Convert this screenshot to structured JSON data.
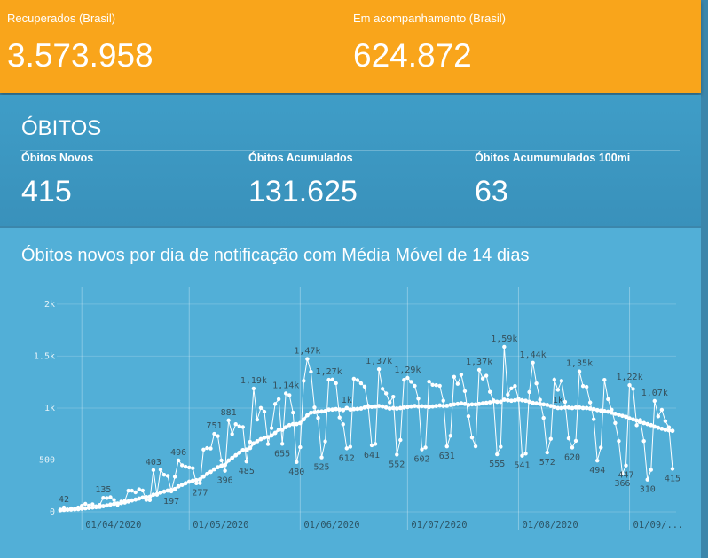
{
  "cards": [
    {
      "label": "Recuperados (Brasil)",
      "value": "3.573.958"
    },
    {
      "label": "Em acompanhamento (Brasil)",
      "value": "624.872"
    }
  ],
  "obitos": {
    "title": "ÓBITOS",
    "cards": [
      {
        "label": "Óbitos Novos",
        "value": "415"
      },
      {
        "label": "Óbitos Acumulados",
        "value": "131.625"
      },
      {
        "label": "Óbitos Acumumulados 100mi",
        "value": "63"
      }
    ]
  },
  "chart_data": {
    "type": "line",
    "title": "Óbitos novos por dia de notificação com Média Móvel de 14 dias",
    "x": [
      "2020-03-26",
      "2020-03-27",
      "2020-03-28",
      "2020-03-29",
      "2020-03-30",
      "2020-03-31",
      "2020-04-01",
      "2020-04-02",
      "2020-04-03",
      "2020-04-04",
      "2020-04-05",
      "2020-04-06",
      "2020-04-07",
      "2020-04-08",
      "2020-04-09",
      "2020-04-10",
      "2020-04-11",
      "2020-04-12",
      "2020-04-13",
      "2020-04-14",
      "2020-04-15",
      "2020-04-16",
      "2020-04-17",
      "2020-04-18",
      "2020-04-19",
      "2020-04-20",
      "2020-04-21",
      "2020-04-22",
      "2020-04-23",
      "2020-04-24",
      "2020-04-25",
      "2020-04-26",
      "2020-04-27",
      "2020-04-28",
      "2020-04-29",
      "2020-04-30",
      "2020-05-01",
      "2020-05-02",
      "2020-05-03",
      "2020-05-04",
      "2020-05-05",
      "2020-05-06",
      "2020-05-07",
      "2020-05-08",
      "2020-05-09",
      "2020-05-10",
      "2020-05-11",
      "2020-05-12",
      "2020-05-13",
      "2020-05-14",
      "2020-05-15",
      "2020-05-16",
      "2020-05-17",
      "2020-05-18",
      "2020-05-19",
      "2020-05-20",
      "2020-05-21",
      "2020-05-22",
      "2020-05-23",
      "2020-05-24",
      "2020-05-25",
      "2020-05-26",
      "2020-05-27",
      "2020-05-28",
      "2020-05-29",
      "2020-05-30",
      "2020-05-31",
      "2020-06-01",
      "2020-06-02",
      "2020-06-03",
      "2020-06-04",
      "2020-06-05",
      "2020-06-06",
      "2020-06-07",
      "2020-06-08",
      "2020-06-09",
      "2020-06-10",
      "2020-06-11",
      "2020-06-12",
      "2020-06-13",
      "2020-06-14",
      "2020-06-15",
      "2020-06-16",
      "2020-06-17",
      "2020-06-18",
      "2020-06-19",
      "2020-06-20",
      "2020-06-21",
      "2020-06-22",
      "2020-06-23",
      "2020-06-24",
      "2020-06-25",
      "2020-06-26",
      "2020-06-27",
      "2020-06-28",
      "2020-06-29",
      "2020-06-30",
      "2020-07-01",
      "2020-07-02",
      "2020-07-03",
      "2020-07-04",
      "2020-07-05",
      "2020-07-06",
      "2020-07-07",
      "2020-07-08",
      "2020-07-09",
      "2020-07-10",
      "2020-07-11",
      "2020-07-12",
      "2020-07-13",
      "2020-07-14",
      "2020-07-15",
      "2020-07-16",
      "2020-07-17",
      "2020-07-18",
      "2020-07-19",
      "2020-07-20",
      "2020-07-21",
      "2020-07-22",
      "2020-07-23",
      "2020-07-24",
      "2020-07-25",
      "2020-07-26",
      "2020-07-27",
      "2020-07-28",
      "2020-07-29",
      "2020-07-30",
      "2020-07-31",
      "2020-08-01",
      "2020-08-02",
      "2020-08-03",
      "2020-08-04",
      "2020-08-05",
      "2020-08-06",
      "2020-08-07",
      "2020-08-08",
      "2020-08-09",
      "2020-08-10",
      "2020-08-11",
      "2020-08-12",
      "2020-08-13",
      "2020-08-14",
      "2020-08-15",
      "2020-08-16",
      "2020-08-17",
      "2020-08-18",
      "2020-08-19",
      "2020-08-20",
      "2020-08-21",
      "2020-08-22",
      "2020-08-23",
      "2020-08-24",
      "2020-08-25",
      "2020-08-26",
      "2020-08-27",
      "2020-08-28",
      "2020-08-29",
      "2020-08-30",
      "2020-08-31",
      "2020-09-01",
      "2020-09-02",
      "2020-09-03",
      "2020-09-04",
      "2020-09-05",
      "2020-09-06",
      "2020-09-07",
      "2020-09-08",
      "2020-09-09",
      "2020-09-10",
      "2020-09-11",
      "2020-09-12",
      "2020-09-13"
    ],
    "series": [
      {
        "color": "#ffffff",
        "values": [
          22,
          42,
          23,
          33,
          31,
          42,
          58,
          77,
          60,
          73,
          54,
          67,
          135,
          133,
          141,
          115,
          68,
          99,
          105,
          204,
          204,
          188,
          217,
          206,
          115,
          113,
          403,
          165,
          407,
          357,
          346,
          197,
          338,
          496,
          449,
          435,
          428,
          421,
          275,
          277,
          600,
          615,
          610,
          751,
          730,
          496,
          396,
          881,
          749,
          844,
          824,
          816,
          485,
          674,
          1188,
          888,
          1001,
          965,
          653,
          807,
          1039,
          1086,
          655,
          1141,
          1124,
          956,
          480,
          623,
          1262,
          1473,
          1349,
          1005,
          904,
          525,
          679,
          1272,
          1274,
          1239,
          909,
          843,
          612,
          627,
          1282,
          1269,
          1238,
          1206,
          1022,
          641,
          654,
          1374,
          1185,
          1141,
          1055,
          1109,
          552,
          692,
          1271,
          1290,
          1252,
          1214,
          1091,
          602,
          620,
          1254,
          1223,
          1220,
          1214,
          1071,
          631,
          733,
          1300,
          1233,
          1322,
          1163,
          921,
          716,
          632,
          1367,
          1284,
          1311,
          1156,
          1074,
          555,
          627,
          1590,
          1129,
          1189,
          1212,
          1088,
          541,
          561,
          1154,
          1437,
          1237,
          1079,
          905,
          572,
          703,
          1274,
          1175,
          1262,
          1060,
          709,
          620,
          684,
          1352,
          1212,
          1204,
          1054,
          892,
          494,
          620,
          1271,
          1085,
          984,
          855,
          682,
          366,
          447,
          1220,
          1184,
          834,
          885,
          682,
          310,
          405,
          1068,
          920,
          983,
          874,
          814,
          415
        ],
        "value_labels": [
          null,
          "42",
          null,
          null,
          null,
          null,
          null,
          null,
          null,
          null,
          null,
          null,
          "135",
          null,
          null,
          null,
          null,
          null,
          null,
          null,
          null,
          null,
          null,
          null,
          null,
          null,
          "403",
          null,
          null,
          null,
          null,
          "197",
          null,
          "496",
          null,
          null,
          null,
          null,
          null,
          "277",
          null,
          null,
          null,
          "751",
          null,
          null,
          "396",
          "881",
          null,
          null,
          null,
          null,
          "485",
          null,
          "1,19k",
          null,
          null,
          null,
          null,
          null,
          null,
          null,
          "655",
          "1,14k",
          null,
          null,
          "480",
          null,
          null,
          "1,47k",
          null,
          null,
          null,
          "525",
          null,
          "1,27k",
          null,
          null,
          null,
          null,
          "612",
          null,
          null,
          null,
          null,
          null,
          null,
          "641",
          null,
          "1,37k",
          null,
          null,
          null,
          null,
          "552",
          null,
          null,
          "1,29k",
          null,
          null,
          null,
          "602",
          null,
          null,
          null,
          null,
          null,
          null,
          "631",
          null,
          null,
          null,
          null,
          null,
          null,
          null,
          null,
          "1,37k",
          null,
          null,
          null,
          null,
          "555",
          null,
          "1,59k",
          null,
          null,
          null,
          null,
          "541",
          null,
          null,
          "1,44k",
          null,
          null,
          null,
          "572",
          null,
          null,
          null,
          null,
          null,
          null,
          "620",
          null,
          "1,35k",
          null,
          null,
          null,
          null,
          "494",
          null,
          null,
          null,
          null,
          null,
          null,
          "366",
          "447",
          "1,22k",
          null,
          null,
          null,
          null,
          "310",
          null,
          "1,07k",
          null,
          null,
          null,
          null,
          "415"
        ]
      },
      {
        "color": "#ffffff",
        "values": [
          15,
          18,
          20,
          22,
          24,
          26,
          30,
          34,
          38,
          42,
          45,
          48,
          55,
          62,
          70,
          76,
          80,
          85,
          90,
          100,
          110,
          118,
          128,
          138,
          142,
          145,
          165,
          170,
          185,
          195,
          205,
          210,
          220,
          245,
          260,
          275,
          290,
          300,
          305,
          312,
          340,
          365,
          385,
          410,
          430,
          445,
          452,
          495,
          520,
          545,
          570,
          595,
          600,
          615,
          660,
          680,
          700,
          715,
          720,
          735,
          760,
          790,
          790,
          815,
          835,
          845,
          845,
          855,
          890,
          930,
          955,
          960,
          965,
          967,
          970,
          985,
          985,
          990,
          985,
          980,
          1000,
          985,
          990,
          992,
          995,
          1005,
          1010,
          1012,
          1015,
          1020,
          1015,
          1005,
          995,
          1000,
          995,
          1000,
          1005,
          1010,
          1015,
          1020,
          1015,
          1018,
          1015,
          1010,
          1015,
          1020,
          1025,
          1020,
          1022,
          1030,
          1035,
          1040,
          1045,
          1040,
          1030,
          1035,
          1035,
          1040,
          1045,
          1050,
          1055,
          1065,
          1060,
          1060,
          1080,
          1075,
          1070,
          1075,
          1080,
          1075,
          1070,
          1060,
          1050,
          1045,
          1040,
          1035,
          1030,
          1020,
          1010,
          1000,
          1000,
          1005,
          1005,
          1000,
          1005,
          1005,
          1000,
          1000,
          995,
          990,
          980,
          975,
          970,
          965,
          955,
          945,
          935,
          925,
          915,
          900,
          890,
          880,
          865,
          855,
          845,
          835,
          820,
          810,
          800,
          790,
          785,
          780
        ],
        "value_labels": [
          null,
          null,
          null,
          null,
          null,
          null,
          null,
          null,
          null,
          null,
          null,
          null,
          null,
          null,
          null,
          null,
          null,
          null,
          null,
          null,
          null,
          null,
          null,
          null,
          null,
          null,
          null,
          null,
          null,
          null,
          null,
          null,
          null,
          null,
          null,
          null,
          null,
          null,
          null,
          null,
          null,
          null,
          null,
          null,
          null,
          null,
          null,
          null,
          null,
          null,
          null,
          null,
          null,
          null,
          null,
          null,
          null,
          null,
          null,
          null,
          null,
          null,
          null,
          null,
          null,
          null,
          null,
          null,
          null,
          null,
          null,
          null,
          null,
          null,
          null,
          null,
          null,
          null,
          null,
          null,
          "1k",
          null,
          null,
          null,
          null,
          null,
          null,
          null,
          null,
          null,
          null,
          null,
          null,
          null,
          null,
          null,
          null,
          null,
          null,
          null,
          null,
          null,
          null,
          null,
          null,
          null,
          null,
          null,
          null,
          null,
          null,
          null,
          null,
          null,
          null,
          null,
          null,
          null,
          null,
          null,
          null,
          null,
          null,
          null,
          null,
          null,
          null,
          null,
          null,
          null,
          null,
          null,
          null,
          null,
          null,
          null,
          null,
          null,
          null,
          "1k",
          null,
          null,
          null,
          null,
          null,
          null,
          null,
          null,
          null,
          null,
          null,
          null,
          null,
          null,
          null,
          null,
          null,
          null,
          null,
          null,
          null,
          null,
          null,
          null,
          null,
          null,
          null,
          null,
          null,
          null,
          null,
          null
        ]
      }
    ],
    "xlim": [
      "2020-03-26",
      "2020-09-14"
    ],
    "xticks": [
      {
        "value": "2020-04-01",
        "label": "01/04/2020"
      },
      {
        "value": "2020-05-01",
        "label": "01/05/2020"
      },
      {
        "value": "2020-06-01",
        "label": "01/06/2020"
      },
      {
        "value": "2020-07-01",
        "label": "01/07/2020"
      },
      {
        "value": "2020-08-01",
        "label": "01/08/2020"
      },
      {
        "value": "2020-09-01",
        "label": "01/09/..."
      }
    ],
    "ylim": [
      0,
      2170
    ],
    "yticks": [
      0,
      500,
      {
        "value": 1000,
        "label": "1k"
      },
      {
        "value": 1500,
        "label": "1.5k"
      },
      {
        "value": 2000,
        "label": "2k"
      }
    ],
    "grid": true
  }
}
